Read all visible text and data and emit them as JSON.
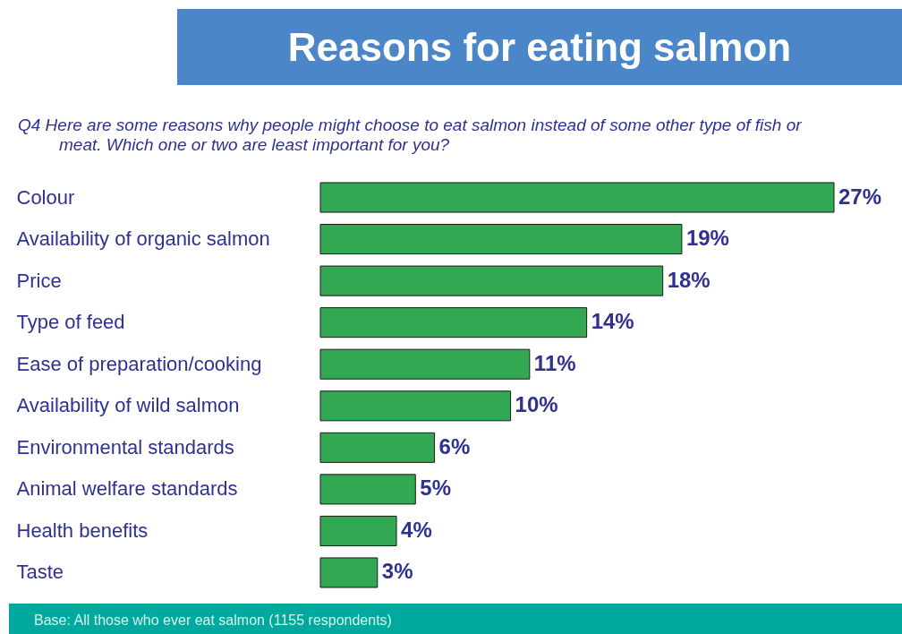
{
  "chart_data": {
    "type": "bar",
    "orientation": "horizontal",
    "title": "Reasons for eating salmon",
    "subtitle": "Q4  Here are some reasons why people might choose to eat salmon instead of some other type of fish or meat. Which one or two are least important for you?",
    "categories": [
      "Colour",
      "Availability of organic salmon",
      "Price",
      "Type of feed",
      "Ease of preparation/cooking",
      "Availability of wild salmon",
      "Environmental standards",
      "Animal welfare standards",
      "Health benefits",
      "Taste"
    ],
    "values": [
      27,
      19,
      18,
      14,
      11,
      10,
      6,
      5,
      4,
      3
    ],
    "value_labels": [
      "27%",
      "19%",
      "18%",
      "14%",
      "11%",
      "10%",
      "6%",
      "5%",
      "4%",
      "3%"
    ],
    "color": "#33a852",
    "annotations": [
      "Base: All those who ever eat salmon (1155 respondents)"
    ]
  }
}
